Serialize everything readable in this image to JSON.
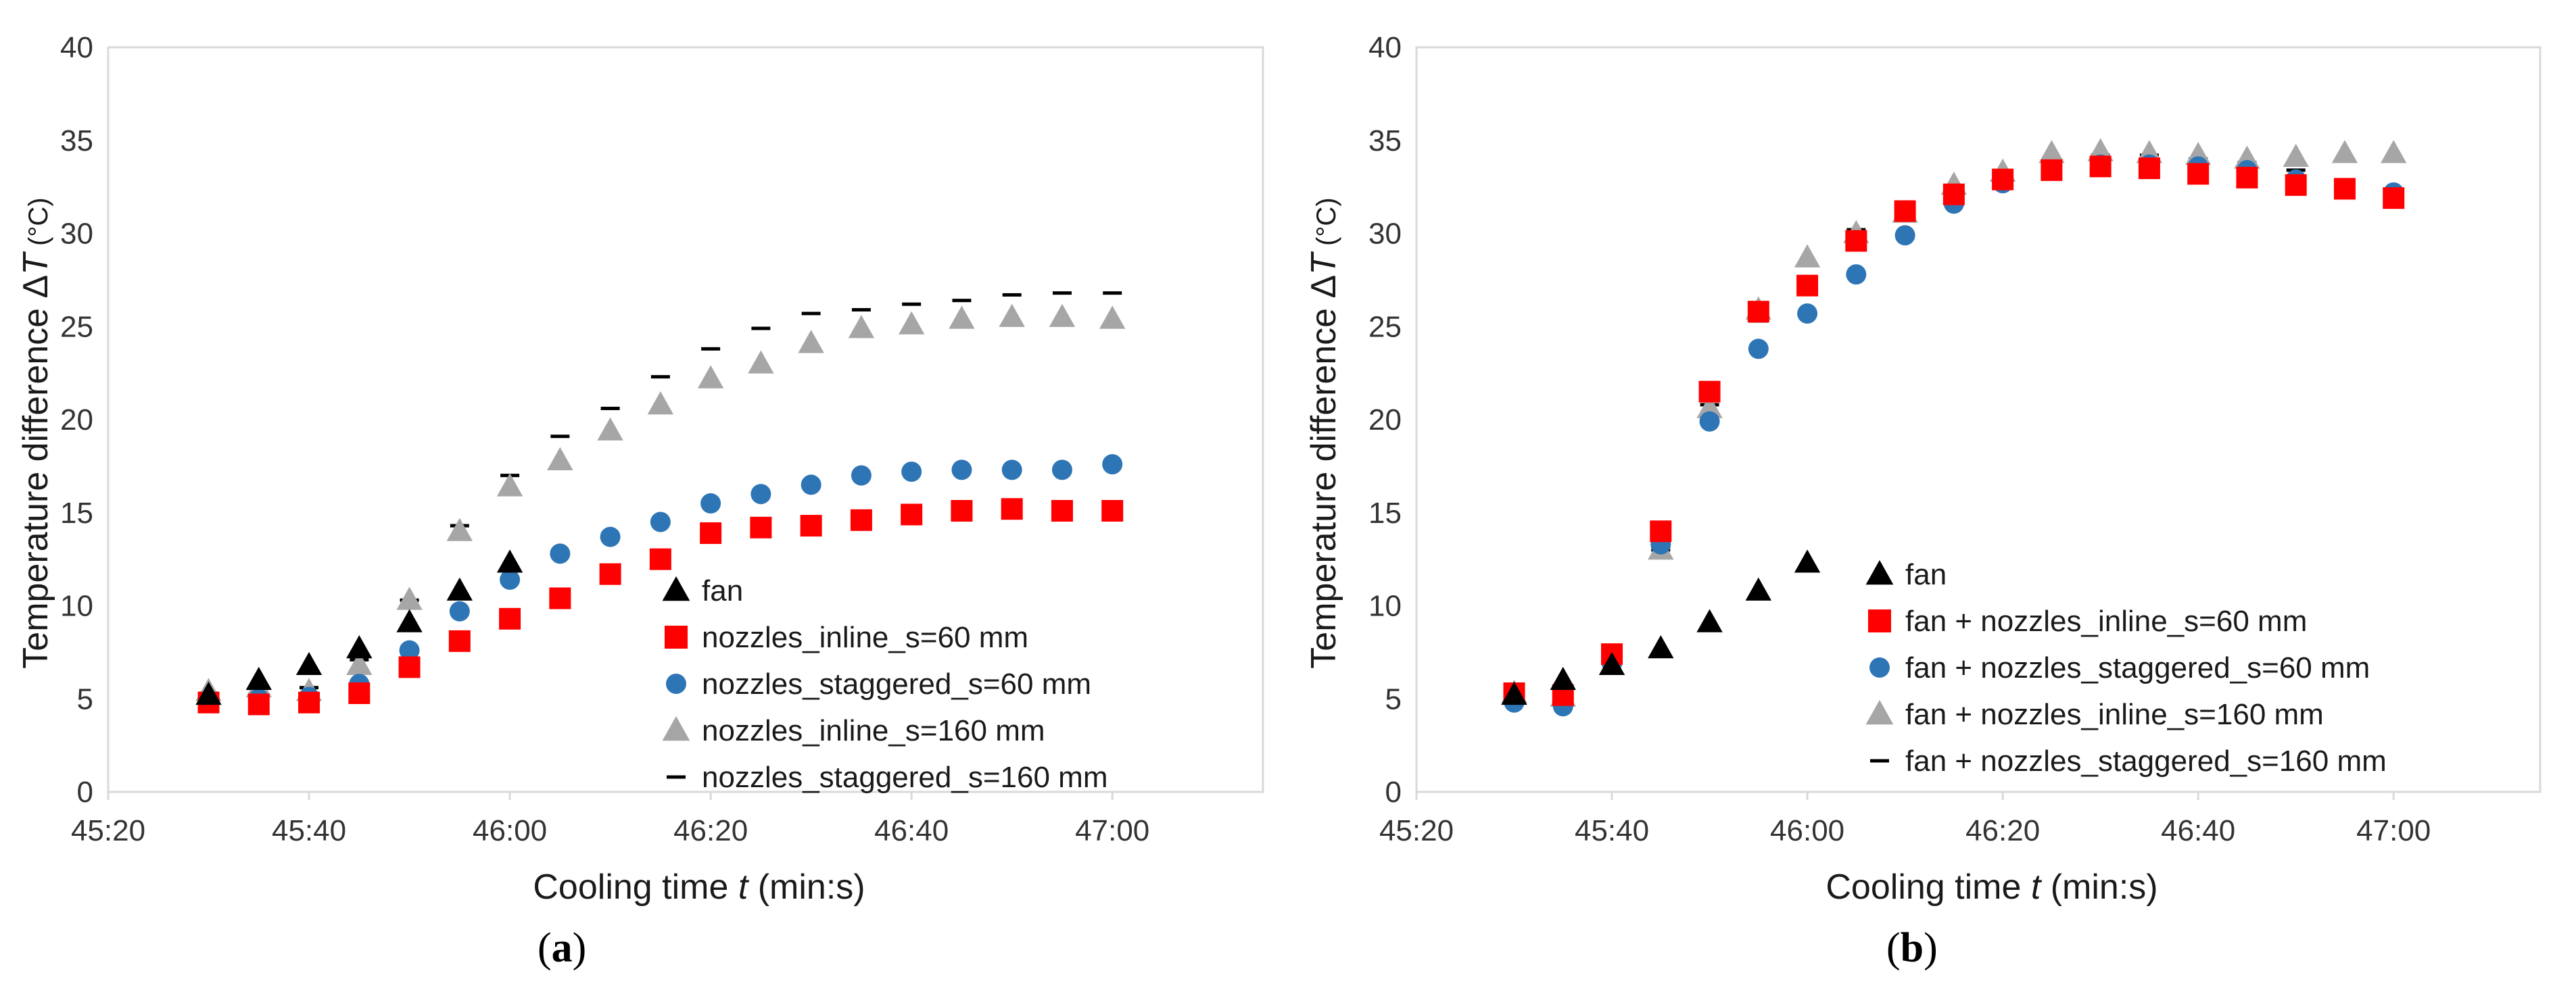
{
  "panels_letter": [
    "a",
    "b"
  ],
  "colors": {
    "fan": "#000000",
    "inline60": "#ff0000",
    "staggered60": "#2e75b6",
    "inline160": "#a6a6a6",
    "staggered160": "#000000",
    "frame": "#d9d9d9"
  },
  "chart_data": [
    {
      "type": "scatter",
      "label": "a",
      "xlabel_prefix": "Cooling time ",
      "xlabel_var": "t",
      "xlabel_suffix": " (min:s)",
      "ylabel_prefix": "Temperature difference Δ",
      "ylabel_var": "T",
      "ylabel_suffix": " (°C)",
      "xlim": [
        2720,
        2835
      ],
      "ylim": [
        0,
        40
      ],
      "xticks": [
        2720,
        2740,
        2760,
        2780,
        2800,
        2820
      ],
      "xtick_labels": [
        "45:20",
        "45:40",
        "46:00",
        "46:20",
        "46:40",
        "47:00"
      ],
      "yticks": [
        0,
        5,
        10,
        15,
        20,
        25,
        30,
        35,
        40
      ],
      "ytick_labels": [
        "0",
        "5",
        "10",
        "15",
        "20",
        "25",
        "30",
        "35",
        "40"
      ],
      "legend_position": "bottom-right",
      "series": [
        {
          "name": "fan",
          "marker": "triangle",
          "color": "#000000",
          "x": [
            2730,
            2735,
            2740,
            2745,
            2750,
            2755,
            2760
          ],
          "y": [
            5.2,
            6.0,
            6.8,
            7.7,
            9.1,
            10.8,
            12.3
          ]
        },
        {
          "name": "nozzles_inline_s=60 mm",
          "marker": "square",
          "color": "#ff0000",
          "x": [
            2730,
            2735,
            2740,
            2745,
            2750,
            2755,
            2760,
            2765,
            2770,
            2775,
            2780,
            2785,
            2790,
            2795,
            2800,
            2805,
            2810,
            2815,
            2820
          ],
          "y": [
            4.8,
            4.7,
            4.8,
            5.3,
            6.7,
            8.1,
            9.3,
            10.4,
            11.7,
            12.5,
            13.9,
            14.2,
            14.3,
            14.6,
            14.9,
            15.1,
            15.2,
            15.1,
            15.1
          ]
        },
        {
          "name": "nozzles_staggered_s=60 mm",
          "marker": "circle",
          "color": "#2e75b6",
          "x": [
            2730,
            2735,
            2740,
            2745,
            2750,
            2755,
            2760,
            2765,
            2770,
            2775,
            2780,
            2785,
            2790,
            2795,
            2800,
            2805,
            2810,
            2815,
            2820
          ],
          "y": [
            4.9,
            5.0,
            5.1,
            5.8,
            7.6,
            9.7,
            11.4,
            12.8,
            13.7,
            14.5,
            15.5,
            16.0,
            16.5,
            17.0,
            17.2,
            17.3,
            17.3,
            17.3,
            17.6
          ]
        },
        {
          "name": "nozzles_inline_s=160 mm",
          "marker": "triangle",
          "color": "#a6a6a6",
          "x": [
            2730,
            2735,
            2740,
            2745,
            2750,
            2755,
            2760,
            2765,
            2770,
            2775,
            2780,
            2785,
            2790,
            2795,
            2800,
            2805,
            2810,
            2815,
            2820
          ],
          "y": [
            5.4,
            5.6,
            5.4,
            6.8,
            10.3,
            14.0,
            16.4,
            17.8,
            19.4,
            20.8,
            22.2,
            23.0,
            24.1,
            24.9,
            25.1,
            25.4,
            25.5,
            25.5,
            25.4
          ]
        },
        {
          "name": "nozzles_staggered_s=160 mm",
          "marker": "dash",
          "color": "#000000",
          "x": [
            2730,
            2735,
            2740,
            2745,
            2750,
            2755,
            2760,
            2765,
            2770,
            2775,
            2780,
            2785,
            2790,
            2795,
            2800,
            2805,
            2810,
            2815,
            2820
          ],
          "y": [
            5.3,
            5.6,
            5.6,
            7.1,
            10.3,
            14.3,
            17.0,
            19.1,
            20.6,
            22.3,
            23.8,
            24.9,
            25.7,
            25.9,
            26.2,
            26.4,
            26.7,
            26.8,
            26.8
          ]
        }
      ]
    },
    {
      "type": "scatter",
      "label": "b",
      "xlabel_prefix": "Cooling time ",
      "xlabel_var": "t",
      "xlabel_suffix": " (min:s)",
      "ylabel_prefix": "Temperature difference Δ",
      "ylabel_var": "T",
      "ylabel_suffix": " (°C)",
      "xlim": [
        2720,
        2835
      ],
      "ylim": [
        0,
        40
      ],
      "xticks": [
        2720,
        2740,
        2760,
        2780,
        2800,
        2820
      ],
      "xtick_labels": [
        "45:20",
        "45:40",
        "46:00",
        "46:20",
        "46:40",
        "47:00"
      ],
      "yticks": [
        0,
        5,
        10,
        15,
        20,
        25,
        30,
        35,
        40
      ],
      "ytick_labels": [
        "0",
        "5",
        "10",
        "15",
        "20",
        "25",
        "30",
        "35",
        "40"
      ],
      "legend_position": "bottom-right",
      "series": [
        {
          "name": "fan",
          "marker": "triangle",
          "color": "#000000",
          "x": [
            2730,
            2735,
            2740,
            2745,
            2750,
            2755,
            2760
          ],
          "y": [
            5.2,
            6.0,
            6.8,
            7.7,
            9.1,
            10.8,
            12.3
          ]
        },
        {
          "name": "fan + nozzles_inline_s=60 mm",
          "marker": "square",
          "color": "#ff0000",
          "x": [
            2730,
            2735,
            2740,
            2745,
            2750,
            2755,
            2760,
            2765,
            2770,
            2775,
            2780,
            2785,
            2790,
            2795,
            2800,
            2805,
            2810,
            2815,
            2820
          ],
          "y": [
            5.3,
            5.2,
            7.4,
            14.0,
            21.5,
            25.8,
            27.2,
            29.6,
            31.2,
            32.1,
            32.9,
            33.4,
            33.6,
            33.5,
            33.2,
            33.0,
            32.6,
            32.4,
            31.9
          ]
        },
        {
          "name": "fan + nozzles_staggered_s=60 mm",
          "marker": "circle",
          "color": "#2e75b6",
          "x": [
            2730,
            2735,
            2740,
            2745,
            2750,
            2755,
            2760,
            2765,
            2770,
            2775,
            2780,
            2785,
            2790,
            2795,
            2800,
            2805,
            2810,
            2815,
            2820
          ],
          "y": [
            4.8,
            4.6,
            6.9,
            13.3,
            19.9,
            23.8,
            25.7,
            27.8,
            29.9,
            31.6,
            32.7,
            33.4,
            33.7,
            33.7,
            33.6,
            33.4,
            32.9,
            32.4,
            32.2
          ]
        },
        {
          "name": "fan + nozzles_inline_s=160 mm",
          "marker": "triangle",
          "color": "#a6a6a6",
          "x": [
            2730,
            2735,
            2740,
            2745,
            2750,
            2755,
            2760,
            2765,
            2770,
            2775,
            2780,
            2785,
            2790,
            2795,
            2800,
            2805,
            2810,
            2815,
            2820
          ],
          "y": [
            5.3,
            5.1,
            6.8,
            13.0,
            20.6,
            25.9,
            28.7,
            30.0,
            31.1,
            32.6,
            33.3,
            34.3,
            34.4,
            34.3,
            34.2,
            34.0,
            34.1,
            34.3,
            34.3
          ]
        },
        {
          "name": "fan + nozzles_staggered_s=160 mm",
          "marker": "dash",
          "color": "#000000",
          "x": [
            2730,
            2735,
            2740,
            2745,
            2750,
            2755,
            2760,
            2765,
            2770,
            2775,
            2780,
            2785,
            2790,
            2795,
            2800,
            2805,
            2810,
            2815,
            2820
          ],
          "y": [
            5.5,
            5.6,
            6.4,
            13.0,
            20.8,
            25.3,
            28.3,
            30.2,
            31.4,
            32.0,
            33.2,
            33.9,
            34.2,
            34.2,
            34.0,
            33.8,
            33.4,
            32.8,
            32.3
          ]
        }
      ]
    }
  ]
}
